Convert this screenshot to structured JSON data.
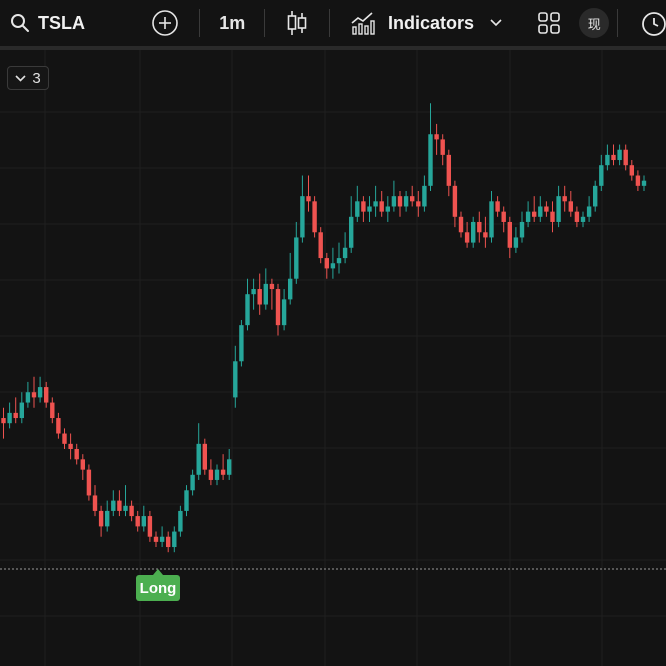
{
  "toolbar": {
    "symbol": "TSLA",
    "interval": "1m",
    "indicators_label": "Indicators",
    "lang_label": "现",
    "icons": {
      "search": "search-icon",
      "add": "plus-circle-icon",
      "chart_type": "candlestick-icon",
      "indicators": "indicators-chart-icon",
      "dropdown": "chevron-down-icon",
      "layout": "grid-layout-icon",
      "alert": "alarm-clock-icon"
    }
  },
  "overlay": {
    "collapsed_count": "3",
    "long_label": "Long"
  },
  "colors": {
    "up": "#26a69a",
    "down": "#ef5350",
    "background": "#131313",
    "grid": "#1f1f1f",
    "long_marker": "#4caf50"
  },
  "chart_data": {
    "type": "candlestick",
    "grid": true,
    "position_line": {
      "style": "dotted",
      "price": 0.06
    },
    "note": "Prices normalized 0-1; axis labels not shown in screenshot",
    "candles": [
      [
        0.31,
        0.3,
        0.33,
        0.27
      ],
      [
        0.3,
        0.32,
        0.34,
        0.29
      ],
      [
        0.32,
        0.31,
        0.35,
        0.3
      ],
      [
        0.31,
        0.34,
        0.36,
        0.3
      ],
      [
        0.34,
        0.36,
        0.38,
        0.33
      ],
      [
        0.36,
        0.35,
        0.39,
        0.33
      ],
      [
        0.35,
        0.37,
        0.39,
        0.34
      ],
      [
        0.37,
        0.34,
        0.38,
        0.33
      ],
      [
        0.34,
        0.31,
        0.35,
        0.3
      ],
      [
        0.31,
        0.28,
        0.32,
        0.27
      ],
      [
        0.28,
        0.26,
        0.29,
        0.25
      ],
      [
        0.26,
        0.25,
        0.28,
        0.23
      ],
      [
        0.25,
        0.23,
        0.26,
        0.22
      ],
      [
        0.23,
        0.21,
        0.24,
        0.19
      ],
      [
        0.21,
        0.16,
        0.22,
        0.15
      ],
      [
        0.16,
        0.13,
        0.18,
        0.12
      ],
      [
        0.13,
        0.1,
        0.14,
        0.08
      ],
      [
        0.1,
        0.13,
        0.15,
        0.09
      ],
      [
        0.13,
        0.15,
        0.17,
        0.12
      ],
      [
        0.15,
        0.13,
        0.17,
        0.12
      ],
      [
        0.13,
        0.14,
        0.18,
        0.12
      ],
      [
        0.14,
        0.12,
        0.15,
        0.11
      ],
      [
        0.12,
        0.1,
        0.13,
        0.09
      ],
      [
        0.1,
        0.12,
        0.14,
        0.09
      ],
      [
        0.12,
        0.08,
        0.13,
        0.07
      ],
      [
        0.08,
        0.07,
        0.09,
        0.06
      ],
      [
        0.07,
        0.08,
        0.1,
        0.06
      ],
      [
        0.08,
        0.06,
        0.09,
        0.05
      ],
      [
        0.06,
        0.09,
        0.1,
        0.05
      ],
      [
        0.09,
        0.13,
        0.14,
        0.08
      ],
      [
        0.13,
        0.17,
        0.18,
        0.12
      ],
      [
        0.17,
        0.2,
        0.21,
        0.16
      ],
      [
        0.2,
        0.26,
        0.3,
        0.19
      ],
      [
        0.26,
        0.21,
        0.27,
        0.2
      ],
      [
        0.21,
        0.19,
        0.23,
        0.18
      ],
      [
        0.19,
        0.21,
        0.22,
        0.18
      ],
      [
        0.21,
        0.2,
        0.24,
        0.19
      ],
      [
        0.2,
        0.23,
        0.25,
        0.19
      ],
      [
        0.35,
        0.42,
        0.45,
        0.33
      ],
      [
        0.42,
        0.49,
        0.5,
        0.41
      ],
      [
        0.49,
        0.55,
        0.58,
        0.48
      ],
      [
        0.55,
        0.56,
        0.58,
        0.52
      ],
      [
        0.56,
        0.53,
        0.59,
        0.51
      ],
      [
        0.53,
        0.57,
        0.6,
        0.52
      ],
      [
        0.57,
        0.56,
        0.58,
        0.52
      ],
      [
        0.56,
        0.49,
        0.57,
        0.47
      ],
      [
        0.49,
        0.54,
        0.56,
        0.48
      ],
      [
        0.54,
        0.58,
        0.63,
        0.53
      ],
      [
        0.58,
        0.66,
        0.69,
        0.57
      ],
      [
        0.66,
        0.74,
        0.78,
        0.65
      ],
      [
        0.74,
        0.73,
        0.78,
        0.71
      ],
      [
        0.73,
        0.67,
        0.74,
        0.66
      ],
      [
        0.67,
        0.62,
        0.68,
        0.61
      ],
      [
        0.62,
        0.6,
        0.63,
        0.58
      ],
      [
        0.6,
        0.61,
        0.64,
        0.58
      ],
      [
        0.61,
        0.62,
        0.65,
        0.59
      ],
      [
        0.62,
        0.64,
        0.67,
        0.61
      ],
      [
        0.64,
        0.7,
        0.74,
        0.63
      ],
      [
        0.7,
        0.73,
        0.76,
        0.69
      ],
      [
        0.73,
        0.71,
        0.74,
        0.69
      ],
      [
        0.71,
        0.72,
        0.74,
        0.69
      ],
      [
        0.72,
        0.73,
        0.76,
        0.7
      ],
      [
        0.73,
        0.71,
        0.75,
        0.7
      ],
      [
        0.71,
        0.72,
        0.74,
        0.69
      ],
      [
        0.72,
        0.74,
        0.77,
        0.71
      ],
      [
        0.74,
        0.72,
        0.75,
        0.7
      ],
      [
        0.72,
        0.74,
        0.75,
        0.71
      ],
      [
        0.74,
        0.73,
        0.76,
        0.72
      ],
      [
        0.73,
        0.72,
        0.75,
        0.7
      ],
      [
        0.72,
        0.76,
        0.78,
        0.71
      ],
      [
        0.76,
        0.86,
        0.92,
        0.75
      ],
      [
        0.86,
        0.85,
        0.88,
        0.82
      ],
      [
        0.85,
        0.82,
        0.86,
        0.8
      ],
      [
        0.82,
        0.76,
        0.83,
        0.74
      ],
      [
        0.76,
        0.7,
        0.77,
        0.68
      ],
      [
        0.7,
        0.67,
        0.71,
        0.66
      ],
      [
        0.67,
        0.65,
        0.69,
        0.64
      ],
      [
        0.65,
        0.69,
        0.7,
        0.64
      ],
      [
        0.69,
        0.67,
        0.71,
        0.65
      ],
      [
        0.67,
        0.66,
        0.7,
        0.64
      ],
      [
        0.66,
        0.73,
        0.75,
        0.65
      ],
      [
        0.73,
        0.71,
        0.74,
        0.7
      ],
      [
        0.71,
        0.69,
        0.72,
        0.67
      ],
      [
        0.69,
        0.64,
        0.7,
        0.62
      ],
      [
        0.64,
        0.66,
        0.68,
        0.63
      ],
      [
        0.66,
        0.69,
        0.71,
        0.65
      ],
      [
        0.69,
        0.71,
        0.73,
        0.68
      ],
      [
        0.71,
        0.7,
        0.74,
        0.69
      ],
      [
        0.7,
        0.72,
        0.74,
        0.69
      ],
      [
        0.72,
        0.71,
        0.73,
        0.7
      ],
      [
        0.71,
        0.69,
        0.73,
        0.67
      ],
      [
        0.69,
        0.74,
        0.76,
        0.68
      ],
      [
        0.74,
        0.73,
        0.76,
        0.71
      ],
      [
        0.73,
        0.71,
        0.75,
        0.7
      ],
      [
        0.71,
        0.69,
        0.72,
        0.68
      ],
      [
        0.69,
        0.7,
        0.71,
        0.68
      ],
      [
        0.7,
        0.72,
        0.74,
        0.69
      ],
      [
        0.72,
        0.76,
        0.77,
        0.71
      ],
      [
        0.76,
        0.8,
        0.82,
        0.75
      ],
      [
        0.8,
        0.82,
        0.84,
        0.79
      ],
      [
        0.82,
        0.81,
        0.84,
        0.8
      ],
      [
        0.81,
        0.83,
        0.84,
        0.8
      ],
      [
        0.83,
        0.8,
        0.84,
        0.79
      ],
      [
        0.8,
        0.78,
        0.81,
        0.77
      ],
      [
        0.78,
        0.76,
        0.79,
        0.75
      ],
      [
        0.76,
        0.77,
        0.78,
        0.75
      ]
    ]
  }
}
